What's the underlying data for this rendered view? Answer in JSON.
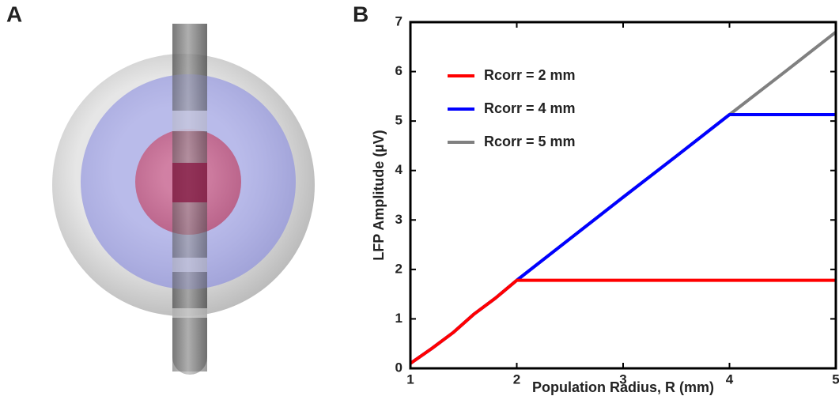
{
  "panels": [
    "A",
    "B"
  ],
  "chart_data": {
    "type": "line",
    "xlabel": "Population Radius, R (mm)",
    "ylabel": "LFP Amplitude (µV)",
    "x": [
      1,
      1.2,
      1.4,
      1.6,
      1.8,
      2,
      2.5,
      3,
      3.5,
      4,
      4.5,
      5
    ],
    "series": [
      {
        "name": "Rcorr = 5 mm",
        "color": "#808080",
        "values": [
          0.1,
          0.4,
          0.72,
          1.1,
          1.42,
          1.78,
          2.62,
          3.46,
          4.29,
          5.13,
          5.96,
          6.8
        ]
      },
      {
        "name": "Rcorr = 4 mm",
        "color": "#0000ff",
        "values": [
          0.1,
          0.4,
          0.72,
          1.1,
          1.42,
          1.78,
          2.62,
          3.46,
          4.29,
          5.13,
          5.13,
          5.13
        ]
      },
      {
        "name": "Rcorr = 2 mm",
        "color": "#ff0000",
        "values": [
          0.1,
          0.4,
          0.72,
          1.1,
          1.42,
          1.78,
          1.78,
          1.78,
          1.78,
          1.78,
          1.78,
          1.78
        ]
      }
    ],
    "legend": "upper left",
    "xlim": [
      1,
      5
    ],
    "xticks": [
      1,
      2,
      3,
      4,
      5
    ],
    "ylim": [
      0,
      7
    ],
    "yticks": [
      0,
      1,
      2,
      3,
      4,
      5,
      6,
      7
    ]
  }
}
